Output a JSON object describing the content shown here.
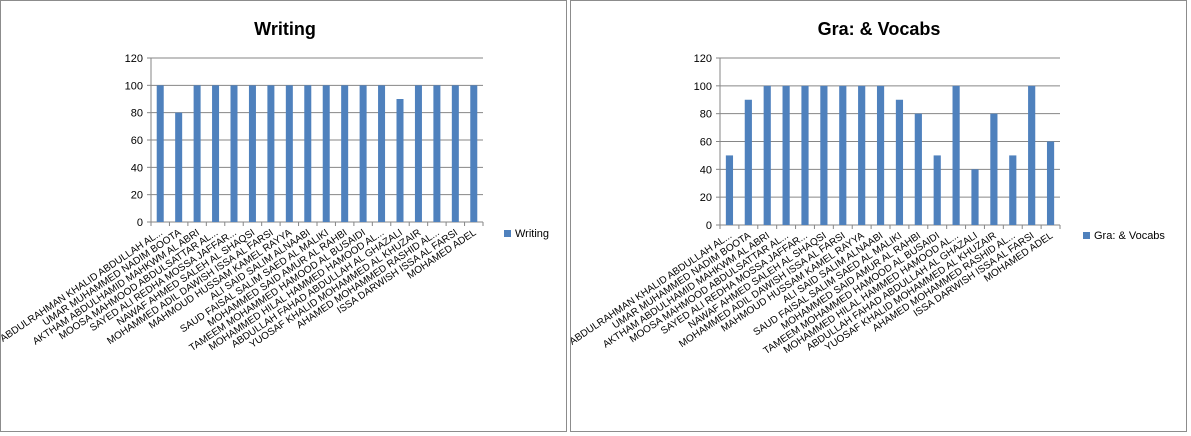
{
  "chart_data": [
    {
      "type": "bar",
      "title": "Writing",
      "categories": [
        "ABDULRAHMAN KHALID ABDULLAH AL...",
        "UMAR MUHAMMED NADIM BOOTA",
        "AKTHAM ABDULHAMID MAHKWM AL ABRI",
        "MOOSA MAHMOOD ABDULSATTAR AL...",
        "SAYED ALI REDHA MOSSA JAFFAR...",
        "NAWAF AHMED SALEH AL SHAQSI",
        "MOHAMMED ADIL DAWISH ISSA AL FARSI",
        "MAHMOUD HUSSAM KAMEL RAYYA",
        "ALI SAID SALIM ALNAABI",
        "SAUD FAISAL SALIM SAED AL MALIKI",
        "MOHAMMED SAID AMUR AL RAHBI",
        "TAMEEM MOHAMMED HAMOOD AL BUSAIDI",
        "MOHAMMED HILAL HAMMED HAMOOD AL...",
        "ABDULLAH FAHAD ABDULLAH AL GHAZALI",
        "YUOSAF KHALID MOHAMMED AL KHUZAIR",
        "AHAMED MOHAMMED RASHID AL...",
        "ISSA DARWISH ISSA AL FARSI",
        "MOHAMED ADEL"
      ],
      "series": [
        {
          "name": "Writing",
          "values": [
            100,
            80,
            100,
            100,
            100,
            100,
            100,
            100,
            100,
            100,
            100,
            100,
            100,
            90,
            100,
            100,
            100,
            100
          ]
        }
      ],
      "ylim": [
        0,
        120
      ],
      "yticks": [
        0,
        20,
        40,
        60,
        80,
        100,
        120
      ],
      "grid": true,
      "legend": "right",
      "bar_color": "#4f81bd"
    },
    {
      "type": "bar",
      "title": "Gra: & Vocabs",
      "categories": [
        "ABDULRAHMAN KHALID ABDULLAH AL...",
        "UMAR MUHAMMED NADIM BOOTA",
        "AKTHAM ABDULHAMID MAHKWM AL ABRI",
        "MOOSA MAHMOOD ABDULSATTAR AL...",
        "SAYED ALI REDHA MOSSA JAFFAR...",
        "NAWAF AHMED SALEH AL SHAQSI",
        "MOHAMMED ADIL DAWISH ISSA AL FARSI",
        "MAHMOUD HUSSAM KAMEL RAYYA",
        "ALI SAID SALIM ALNAABI",
        "SAUD FAISAL SALIM SAED AL MALIKI",
        "MOHAMMED SAID AMUR AL RAHBI",
        "TAMEEM MOHAMMED HAMOOD AL BUSAIDI",
        "MOHAMMED HILAL HAMMED HAMOOD AL...",
        "ABDULLAH FAHAD ABDULLAH AL GHAZALI",
        "YUOSAF KHALID MOHAMMED AL KHUZAIR",
        "AHAMED MOHAMMED RASHID AL...",
        "ISSA DARWISH ISSA AL FARSI",
        "MOHAMED ADEL"
      ],
      "series": [
        {
          "name": "Gra: & Vocabs",
          "values": [
            50,
            90,
            100,
            100,
            100,
            100,
            100,
            100,
            100,
            90,
            80,
            50,
            100,
            40,
            80,
            50,
            100,
            60
          ]
        }
      ],
      "ylim": [
        0,
        120
      ],
      "yticks": [
        0,
        20,
        40,
        60,
        80,
        100,
        120
      ],
      "grid": true,
      "legend": "right",
      "bar_color": "#4f81bd"
    }
  ]
}
